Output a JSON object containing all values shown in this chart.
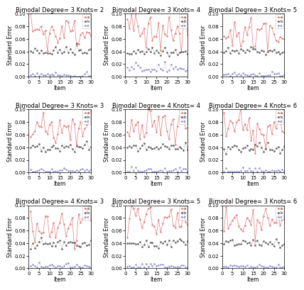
{
  "titles": [
    "Bimodal Degree= 3 Knots= 2",
    "Bimodal Degree= 3 Knots= 4",
    "Bimodal Degree= 3 Knots= 5",
    "Bimodal Degree= 3 Knots= 3",
    "Bimodal Degree= 4 Knots= 4",
    "Bimodal Degree= 4 Knots= 6",
    "Bimodal Degree= 4 Knots= 3",
    "Bimodal Degree= 3 Knots= 5",
    "Bimodal Degree= 3 Knots= 6"
  ],
  "xlabel": "Item",
  "ylabel": "Standard Error",
  "ylim": [
    0.0,
    0.1
  ],
  "xlim": [
    0,
    30
  ],
  "n_items": 30,
  "legend_labels": [
    "a",
    "b",
    "c"
  ],
  "line_colors": [
    "#e08080",
    "#606060",
    "#9090d0"
  ],
  "title_fontsize": 6.0,
  "axis_fontsize": 5.5,
  "tick_fontsize": 5.0,
  "subplot_params": [
    {
      "red_base": 0.044,
      "red_noise": 0.016,
      "gray_base": 0.04,
      "gray_noise": 0.004,
      "blue_base": 0.0,
      "blue_noise": 0.003,
      "seed": 1
    },
    {
      "red_base": 0.048,
      "red_noise": 0.02,
      "gray_base": 0.04,
      "gray_noise": 0.004,
      "blue_base": 0.008,
      "blue_noise": 0.006,
      "seed": 2
    },
    {
      "red_base": 0.044,
      "red_noise": 0.016,
      "gray_base": 0.04,
      "gray_noise": 0.003,
      "blue_base": 0.001,
      "blue_noise": 0.003,
      "seed": 3
    },
    {
      "red_base": 0.046,
      "red_noise": 0.018,
      "gray_base": 0.04,
      "gray_noise": 0.004,
      "blue_base": 0.001,
      "blue_noise": 0.003,
      "seed": 4
    },
    {
      "red_base": 0.046,
      "red_noise": 0.02,
      "gray_base": 0.04,
      "gray_noise": 0.004,
      "blue_base": 0.001,
      "blue_noise": 0.003,
      "seed": 5
    },
    {
      "red_base": 0.046,
      "red_noise": 0.02,
      "gray_base": 0.04,
      "gray_noise": 0.004,
      "blue_base": 0.001,
      "blue_noise": 0.003,
      "seed": 6
    },
    {
      "red_base": 0.046,
      "red_noise": 0.02,
      "gray_base": 0.04,
      "gray_noise": 0.004,
      "blue_base": 0.001,
      "blue_noise": 0.003,
      "seed": 7
    },
    {
      "red_base": 0.046,
      "red_noise": 0.02,
      "gray_base": 0.04,
      "gray_noise": 0.004,
      "blue_base": 0.001,
      "blue_noise": 0.003,
      "seed": 8
    },
    {
      "red_base": 0.046,
      "red_noise": 0.02,
      "gray_base": 0.04,
      "gray_noise": 0.004,
      "blue_base": 0.001,
      "blue_noise": 0.003,
      "seed": 9
    }
  ]
}
